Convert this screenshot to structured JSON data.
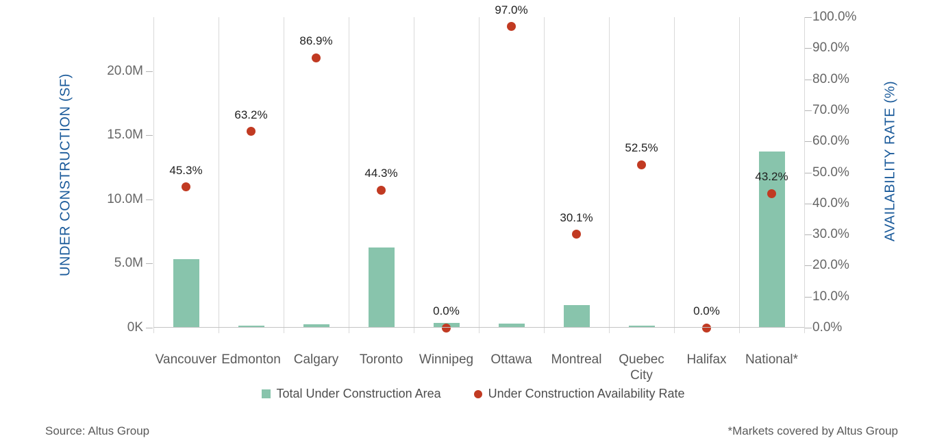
{
  "chart_data": {
    "type": "bar",
    "subtype": "combo-bar-scatter-dual-axis",
    "categories": [
      "Vancouver",
      "Edmonton",
      "Calgary",
      "Toronto",
      "Winnipeg",
      "Ottawa",
      "Montreal",
      "Quebec City",
      "Halifax",
      "National*"
    ],
    "series": [
      {
        "name": "Total Under Construction Area",
        "type": "bar",
        "axis": "left",
        "unit": "million SF",
        "values": [
          5.3,
          0.1,
          0.2,
          6.2,
          0.3,
          0.25,
          1.7,
          0.1,
          0,
          13.7
        ]
      },
      {
        "name": "Under Construction Availability Rate",
        "type": "scatter",
        "axis": "right",
        "unit": "%",
        "values": [
          45.3,
          63.2,
          86.9,
          44.3,
          0.0,
          97.0,
          30.1,
          52.5,
          0.0,
          43.2
        ],
        "labels": [
          "45.3%",
          "63.2%",
          "86.9%",
          "44.3%",
          "0.0%",
          "97.0%",
          "30.1%",
          "52.5%",
          "0.0%",
          "43.2%"
        ]
      }
    ],
    "left_axis": {
      "title": "UNDER CONSTRUCTION (SF)",
      "tick_values": [
        0,
        5,
        10,
        15,
        20
      ],
      "tick_labels": [
        "0K",
        "5.0M",
        "10.0M",
        "15.0M",
        "20.0M"
      ],
      "min": 0,
      "max": 24.2
    },
    "right_axis": {
      "title": "AVAILABILITY RATE (%)",
      "tick_values": [
        0,
        10,
        20,
        30,
        40,
        50,
        60,
        70,
        80,
        90,
        100
      ],
      "tick_labels": [
        "0.0%",
        "10.0%",
        "20.0%",
        "30.0%",
        "40.0%",
        "50.0%",
        "60.0%",
        "70.0%",
        "80.0%",
        "90.0%",
        "100.0%"
      ],
      "min": 0,
      "max": 100
    },
    "grid": "vertical-only",
    "legend_position": "bottom-center"
  },
  "legend": {
    "items": [
      {
        "label": "Total Under Construction Area",
        "marker": "square-icon",
        "color": "#88c4ac"
      },
      {
        "label": "Under Construction Availability Rate",
        "marker": "circle-icon",
        "color": "#c13a22"
      }
    ]
  },
  "footer": {
    "source": "Source: Altus Group",
    "note": "*Markets covered by Altus Group"
  },
  "colors": {
    "bar": "#88c4ac",
    "dot": "#c13a22",
    "axis_title": "#1a5a9a",
    "gridline": "#d9d9d9",
    "tick_text": "#666666",
    "category_text": "#595959",
    "data_label_text": "#1f1f1f"
  }
}
